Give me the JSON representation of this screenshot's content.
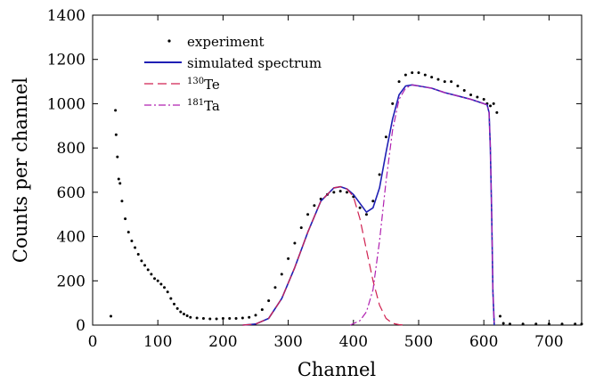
{
  "chart_data": {
    "type": "line",
    "xlabel": "Channel",
    "ylabel": "Counts per channel",
    "xlim": [
      0,
      750
    ],
    "ylim": [
      0,
      1400
    ],
    "xticks": [
      0,
      100,
      200,
      300,
      400,
      500,
      600,
      700
    ],
    "yticks": [
      0,
      200,
      400,
      600,
      800,
      1000,
      1200,
      1400
    ],
    "grid": false,
    "legend_placement": "top-left",
    "legend": [
      {
        "id": "experiment",
        "label": "experiment"
      },
      {
        "id": "simulated",
        "label": "simulated spectrum"
      },
      {
        "id": "te",
        "label_sup": "130",
        "label": "Te"
      },
      {
        "id": "ta",
        "label_sup": "181",
        "label": "Ta"
      }
    ],
    "series": [
      {
        "id": "experiment",
        "style": "points",
        "color": "#000000",
        "x": [
          28,
          35,
          36,
          38,
          40,
          42,
          45,
          50,
          55,
          60,
          65,
          70,
          75,
          80,
          85,
          90,
          95,
          100,
          105,
          110,
          115,
          120,
          125,
          130,
          135,
          140,
          145,
          150,
          160,
          170,
          180,
          190,
          200,
          210,
          220,
          230,
          240,
          250,
          260,
          270,
          280,
          290,
          300,
          310,
          320,
          330,
          340,
          350,
          360,
          370,
          380,
          390,
          400,
          410,
          420,
          430,
          440,
          450,
          460,
          470,
          480,
          490,
          500,
          510,
          520,
          530,
          540,
          550,
          560,
          570,
          580,
          590,
          600,
          605,
          610,
          615,
          620,
          625,
          630,
          640,
          660,
          680,
          700,
          720,
          740,
          750
        ],
        "y": [
          40,
          970,
          860,
          760,
          660,
          640,
          560,
          480,
          420,
          380,
          350,
          320,
          290,
          270,
          250,
          230,
          210,
          200,
          185,
          170,
          150,
          120,
          95,
          75,
          60,
          50,
          42,
          35,
          32,
          30,
          28,
          28,
          30,
          30,
          30,
          32,
          35,
          45,
          70,
          110,
          170,
          230,
          300,
          370,
          440,
          500,
          540,
          570,
          590,
          600,
          605,
          600,
          580,
          530,
          500,
          560,
          680,
          850,
          1000,
          1100,
          1130,
          1140,
          1140,
          1130,
          1120,
          1110,
          1100,
          1100,
          1080,
          1060,
          1040,
          1030,
          1020,
          1000,
          990,
          1000,
          960,
          40,
          8,
          5,
          5,
          5,
          5,
          5,
          5,
          5
        ]
      },
      {
        "id": "simulated",
        "style": "solid",
        "color": "#1f1fb4",
        "x": [
          230,
          250,
          270,
          290,
          310,
          330,
          350,
          370,
          380,
          390,
          400,
          410,
          420,
          430,
          440,
          450,
          460,
          470,
          480,
          490,
          500,
          520,
          540,
          560,
          580,
          600,
          605,
          608,
          610,
          612,
          614,
          616
        ],
        "y": [
          0,
          5,
          30,
          120,
          260,
          420,
          560,
          620,
          625,
          615,
          590,
          550,
          510,
          530,
          620,
          780,
          930,
          1040,
          1080,
          1085,
          1080,
          1070,
          1050,
          1035,
          1020,
          1000,
          995,
          960,
          800,
          500,
          150,
          0
        ]
      },
      {
        "id": "te",
        "style": "dashed",
        "color": "#d02050",
        "x": [
          230,
          250,
          270,
          290,
          310,
          330,
          350,
          370,
          380,
          390,
          400,
          410,
          420,
          430,
          440,
          450,
          460,
          470,
          480
        ],
        "y": [
          0,
          5,
          30,
          120,
          260,
          420,
          560,
          620,
          625,
          615,
          580,
          480,
          340,
          200,
          90,
          30,
          8,
          2,
          0
        ]
      },
      {
        "id": "ta",
        "style": "dashdot",
        "color": "#b020b0",
        "x": [
          395,
          410,
          420,
          430,
          440,
          450,
          460,
          470,
          480,
          490,
          500,
          520,
          540,
          560,
          580,
          600,
          605,
          608,
          610,
          612,
          614,
          616
        ],
        "y": [
          0,
          20,
          60,
          160,
          380,
          650,
          880,
          1020,
          1070,
          1085,
          1080,
          1070,
          1050,
          1035,
          1020,
          1000,
          995,
          960,
          800,
          500,
          150,
          0
        ]
      }
    ]
  }
}
